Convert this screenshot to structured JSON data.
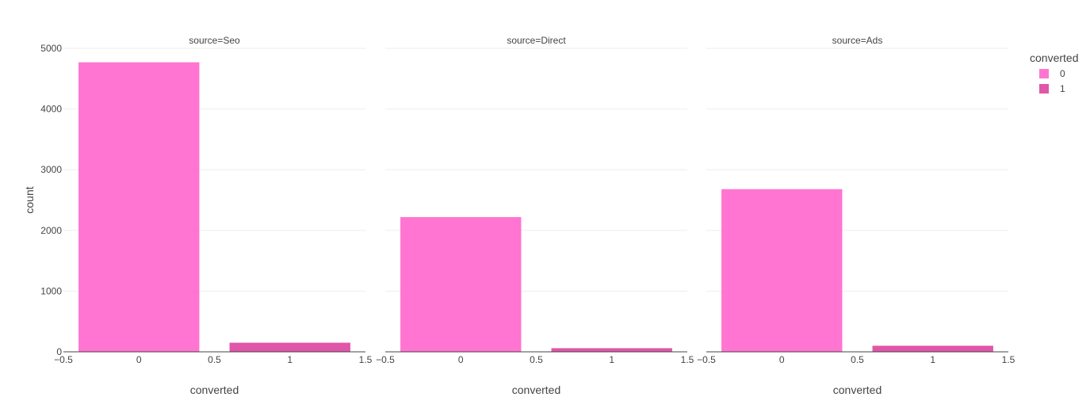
{
  "chart_data": {
    "type": "bar",
    "facet_variable": "source",
    "facets": [
      {
        "title": "source=Seo",
        "x": [
          0,
          1
        ],
        "values": [
          4770,
          150
        ]
      },
      {
        "title": "source=Direct",
        "x": [
          0,
          1
        ],
        "values": [
          2220,
          60
        ]
      },
      {
        "title": "source=Ads",
        "x": [
          0,
          1
        ],
        "values": [
          2680,
          100
        ]
      }
    ],
    "xlabel": "converted",
    "ylabel": "count",
    "xlim": [
      -0.5,
      1.5
    ],
    "ylim": [
      0,
      5000
    ],
    "x_ticks": [
      "−0.5",
      "0",
      "0.5",
      "1",
      "1.5"
    ],
    "x_tick_values": [
      -0.5,
      0,
      0.5,
      1,
      1.5
    ],
    "y_ticks": [
      "0",
      "1000",
      "2000",
      "3000",
      "4000",
      "5000"
    ],
    "y_tick_values": [
      0,
      1000,
      2000,
      3000,
      4000,
      5000
    ],
    "grid": true,
    "legend": {
      "title": "converted",
      "position": "top-right",
      "entries": [
        {
          "label": "0",
          "color": "#ff66cc"
        },
        {
          "label": "1",
          "color": "#dd44a0"
        }
      ]
    },
    "series_colors": [
      "#ff66cc",
      "#dd44a0"
    ],
    "bar_opacity": 0.9
  }
}
